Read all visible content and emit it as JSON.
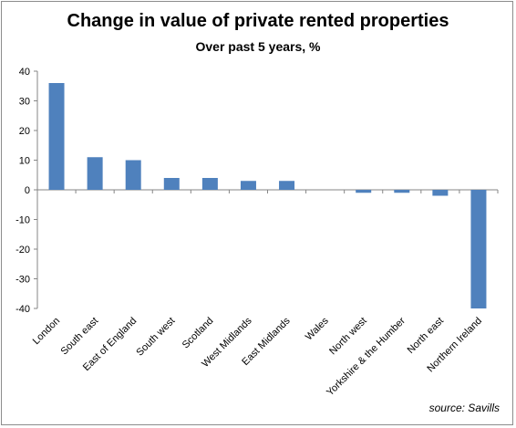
{
  "chart_data": {
    "type": "bar",
    "title": "Change in value of private rented properties",
    "subtitle": "Over past 5 years, %",
    "source": "source: Savills",
    "categories": [
      "London",
      "South east",
      "East of England",
      "South west",
      "Scotland",
      "West Midlands",
      "East Midlands",
      "Wales",
      "North west",
      "Yorkshire & the Humber",
      "North east",
      "Northern Ireland"
    ],
    "values": [
      36,
      11,
      10,
      4,
      4,
      3,
      3,
      0,
      -1,
      -1,
      -2,
      -40
    ],
    "ylim": [
      -40,
      40
    ],
    "yticks": [
      40,
      30,
      20,
      10,
      0,
      -10,
      -20,
      -30,
      -40
    ],
    "grid": false,
    "bar_color": "#4f81bd"
  }
}
